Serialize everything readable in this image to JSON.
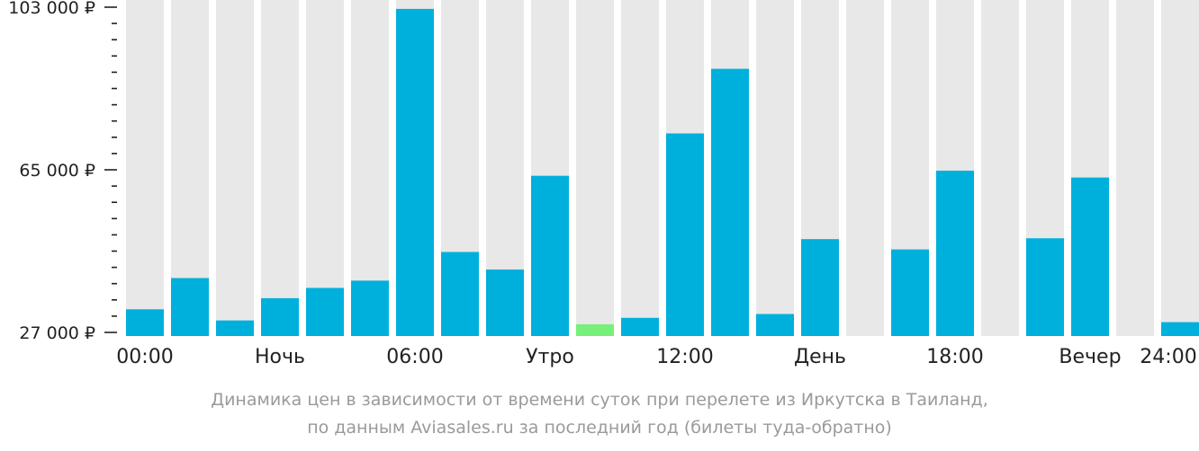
{
  "chart_data": {
    "type": "bar",
    "title": "",
    "xlabel": "",
    "ylabel": "",
    "ylim": [
      27000,
      103000
    ],
    "y_tick_values": [
      27000,
      65000,
      103000
    ],
    "y_tick_labels": [
      "27 000 ₽",
      "65 000 ₽",
      "103 000 ₽"
    ],
    "y_minor_ticks": 9,
    "x_tick_labels": [
      "00:00",
      "Ночь",
      "06:00",
      "Утро",
      "12:00",
      "День",
      "18:00",
      "Вечер",
      "24:00"
    ],
    "categories": [
      "0",
      "1",
      "2",
      "3",
      "4",
      "5",
      "6",
      "7",
      "8",
      "9",
      "10",
      "11",
      "12",
      "13",
      "14",
      "15",
      "16",
      "17",
      "18",
      "19",
      "20",
      "21",
      "22",
      "23"
    ],
    "values": [
      32400,
      39700,
      29800,
      35000,
      37400,
      39100,
      102600,
      45800,
      41700,
      63600,
      28900,
      30400,
      73500,
      88600,
      31300,
      48800,
      null,
      46400,
      64800,
      null,
      49000,
      63200,
      null,
      29400
    ],
    "cheapest_index": 10,
    "grid": false,
    "colors": {
      "bar": "#00b0dc",
      "cheapest": "#77f07a",
      "background_column": "#e8e8e8",
      "axis": "#222222"
    }
  },
  "caption": {
    "line1": "Динамика цен в зависимости от времени суток при перелете из Иркутска в Таиланд,",
    "line2": "по данным Aviasales.ru за последний год (билеты туда-обратно)"
  }
}
